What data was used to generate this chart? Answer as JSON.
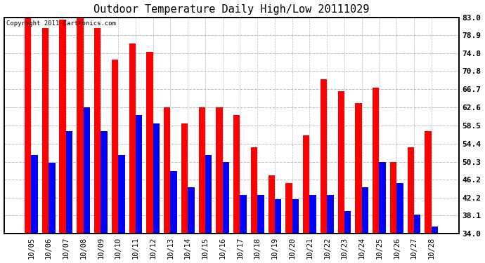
{
  "title": "Outdoor Temperature Daily High/Low 20111029",
  "copyright": "Copyright 2011 Cartronics.com",
  "categories": [
    "10/05",
    "10/06",
    "10/07",
    "10/08",
    "10/09",
    "10/10",
    "10/11",
    "10/12",
    "10/13",
    "10/14",
    "10/15",
    "10/16",
    "10/17",
    "10/18",
    "10/19",
    "10/20",
    "10/21",
    "10/22",
    "10/23",
    "10/24",
    "10/25",
    "10/26",
    "10/27",
    "10/28"
  ],
  "highs": [
    83.0,
    80.6,
    82.4,
    83.0,
    80.6,
    73.4,
    77.0,
    75.2,
    62.6,
    59.0,
    62.6,
    62.6,
    60.8,
    53.6,
    47.3,
    45.5,
    56.3,
    68.9,
    66.2,
    63.5,
    67.1,
    50.3,
    53.6,
    57.2
  ],
  "lows": [
    51.8,
    50.0,
    57.2,
    62.6,
    57.2,
    51.8,
    60.8,
    59.0,
    48.2,
    44.6,
    51.8,
    50.3,
    42.8,
    42.8,
    41.9,
    41.9,
    42.8,
    42.8,
    39.2,
    44.6,
    50.3,
    45.5,
    38.3,
    35.6
  ],
  "high_color": "#ff0000",
  "low_color": "#0000ff",
  "bg_color": "#ffffff",
  "grid_color": "#bbbbbb",
  "ylim_min": 34.0,
  "ylim_max": 83.0,
  "yticks": [
    34.0,
    38.1,
    42.2,
    46.2,
    50.3,
    54.4,
    58.5,
    62.6,
    66.7,
    70.8,
    74.8,
    78.9,
    83.0
  ],
  "bar_width": 0.38
}
